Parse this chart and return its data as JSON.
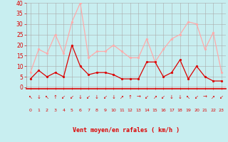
{
  "hours": [
    0,
    1,
    2,
    3,
    4,
    5,
    6,
    7,
    8,
    9,
    10,
    11,
    12,
    13,
    14,
    15,
    16,
    17,
    18,
    19,
    20,
    21,
    22,
    23
  ],
  "vent_moyen": [
    4,
    8,
    5,
    7,
    5,
    20,
    10,
    6,
    7,
    7,
    6,
    4,
    4,
    4,
    12,
    12,
    5,
    7,
    13,
    4,
    10,
    5,
    3,
    3
  ],
  "rafales": [
    7,
    18,
    16,
    25,
    16,
    31,
    40,
    14,
    17,
    17,
    20,
    17,
    14,
    14,
    23,
    12,
    18,
    23,
    25,
    31,
    30,
    18,
    26,
    7
  ],
  "wind_dirs": [
    "↖",
    "↓",
    "↖",
    "↑",
    "↙",
    "↙",
    "↓",
    "↙",
    "↓",
    "↙",
    "↓",
    "↗",
    "↑",
    "→",
    "↙",
    "↗",
    "↙",
    "↓",
    "↓",
    "↖",
    "↙",
    "→",
    "↗",
    "↙"
  ],
  "xlabel": "Vent moyen/en rafales ( km/h )",
  "bg_color": "#c8eef0",
  "grid_color": "#aaaaaa",
  "line_color_mean": "#dd0000",
  "line_color_gust": "#ffaaaa",
  "ylim": [
    0,
    40
  ],
  "yticks": [
    0,
    5,
    10,
    15,
    20,
    25,
    30,
    35,
    40
  ],
  "xticks": [
    0,
    1,
    2,
    3,
    4,
    5,
    6,
    7,
    8,
    9,
    10,
    11,
    12,
    13,
    14,
    15,
    16,
    17,
    18,
    19,
    20,
    21,
    22,
    23
  ]
}
